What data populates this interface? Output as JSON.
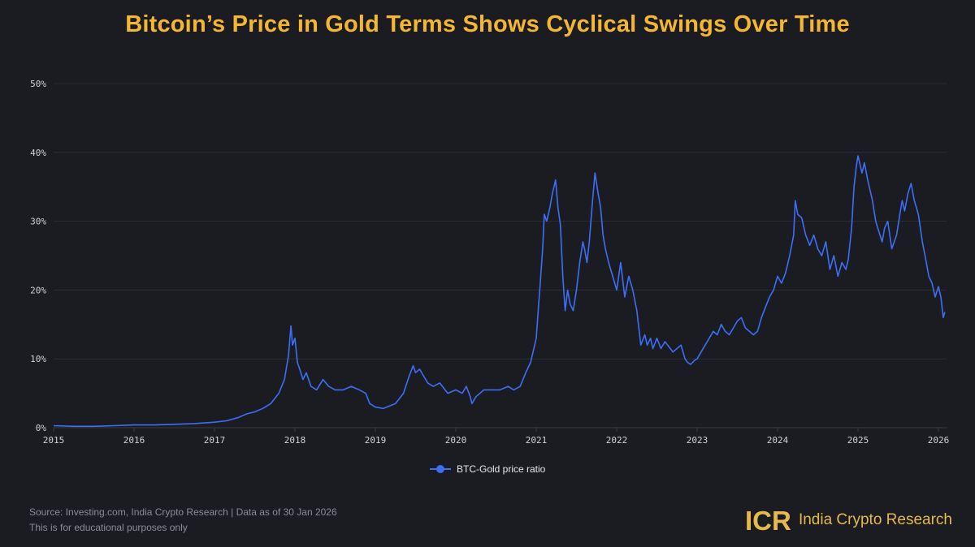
{
  "chart_data": {
    "type": "line",
    "title": "Bitcoin’s Price in Gold Terms Shows Cyclical Swings Over Time",
    "xlabel": "",
    "ylabel": "",
    "xlim": [
      2015,
      2026.1
    ],
    "ylim": [
      0,
      50
    ],
    "x_ticks": [
      2015,
      2016,
      2017,
      2018,
      2019,
      2020,
      2021,
      2022,
      2023,
      2024,
      2025,
      2026
    ],
    "x_tick_labels": [
      "2015",
      "2016",
      "2017",
      "2018",
      "2019",
      "2020",
      "2021",
      "2022",
      "2023",
      "2024",
      "2025",
      "2026"
    ],
    "y_ticks": [
      0,
      10,
      20,
      30,
      40,
      50
    ],
    "y_tick_labels": [
      "0%",
      "10%",
      "20%",
      "30%",
      "40%",
      "50%"
    ],
    "grid": true,
    "legend_position": "bottom-center",
    "series": [
      {
        "name": "BTC-Gold price ratio",
        "color": "#3d6ef7",
        "x": [
          2015.0,
          2015.25,
          2015.5,
          2015.75,
          2016.0,
          2016.25,
          2016.5,
          2016.75,
          2017.0,
          2017.15,
          2017.3,
          2017.4,
          2017.5,
          2017.6,
          2017.7,
          2017.8,
          2017.87,
          2017.92,
          2017.95,
          2017.97,
          2018.0,
          2018.03,
          2018.06,
          2018.1,
          2018.14,
          2018.2,
          2018.27,
          2018.35,
          2018.42,
          2018.5,
          2018.6,
          2018.7,
          2018.8,
          2018.88,
          2018.93,
          2019.0,
          2019.1,
          2019.25,
          2019.35,
          2019.42,
          2019.47,
          2019.5,
          2019.55,
          2019.6,
          2019.65,
          2019.72,
          2019.8,
          2019.9,
          2020.0,
          2020.08,
          2020.13,
          2020.18,
          2020.2,
          2020.25,
          2020.35,
          2020.45,
          2020.55,
          2020.65,
          2020.72,
          2020.8,
          2020.87,
          2020.93,
          2021.0,
          2021.03,
          2021.05,
          2021.08,
          2021.1,
          2021.13,
          2021.17,
          2021.2,
          2021.24,
          2021.27,
          2021.3,
          2021.33,
          2021.36,
          2021.39,
          2021.42,
          2021.46,
          2021.5,
          2021.54,
          2021.58,
          2021.6,
          2021.63,
          2021.66,
          2021.7,
          2021.73,
          2021.77,
          2021.8,
          2021.83,
          2021.86,
          2021.9,
          2021.95,
          2022.0,
          2022.05,
          2022.1,
          2022.15,
          2022.2,
          2022.25,
          2022.3,
          2022.35,
          2022.38,
          2022.42,
          2022.45,
          2022.5,
          2022.55,
          2022.6,
          2022.7,
          2022.8,
          2022.85,
          2022.88,
          2022.92,
          2022.97,
          2023.0,
          2023.05,
          2023.1,
          2023.15,
          2023.2,
          2023.25,
          2023.3,
          2023.35,
          2023.4,
          2023.45,
          2023.5,
          2023.55,
          2023.6,
          2023.7,
          2023.75,
          2023.8,
          2023.85,
          2023.9,
          2023.95,
          2024.0,
          2024.05,
          2024.1,
          2024.15,
          2024.2,
          2024.22,
          2024.25,
          2024.3,
          2024.35,
          2024.4,
          2024.45,
          2024.5,
          2024.55,
          2024.6,
          2024.65,
          2024.7,
          2024.75,
          2024.8,
          2024.85,
          2024.88,
          2024.92,
          2024.95,
          2024.98,
          2025.0,
          2025.05,
          2025.08,
          2025.12,
          2025.18,
          2025.22,
          2025.26,
          2025.3,
          2025.33,
          2025.37,
          2025.42,
          2025.48,
          2025.52,
          2025.55,
          2025.58,
          2025.62,
          2025.66,
          2025.7,
          2025.75,
          2025.8,
          2025.85,
          2025.88,
          2025.92,
          2025.96,
          2026.0,
          2026.03,
          2026.06,
          2026.08
        ],
        "values": [
          0.3,
          0.2,
          0.2,
          0.3,
          0.4,
          0.4,
          0.5,
          0.6,
          0.8,
          1.0,
          1.5,
          2.0,
          2.3,
          2.8,
          3.5,
          5.0,
          7.0,
          10.5,
          14.8,
          12.0,
          13.0,
          9.5,
          8.5,
          7.0,
          8.0,
          6.0,
          5.5,
          7.0,
          6.0,
          5.5,
          5.5,
          6.0,
          5.5,
          5.0,
          3.5,
          3.0,
          2.8,
          3.5,
          5.0,
          7.5,
          9.0,
          8.0,
          8.5,
          7.5,
          6.5,
          6.0,
          6.5,
          5.0,
          5.5,
          5.0,
          6.0,
          4.5,
          3.5,
          4.5,
          5.5,
          5.5,
          5.5,
          6.0,
          5.5,
          6.0,
          8.0,
          9.5,
          13.0,
          18.0,
          21.0,
          26.0,
          31.0,
          30.0,
          32.0,
          34.0,
          36.0,
          32.0,
          29.5,
          22.0,
          17.0,
          20.0,
          18.0,
          17.0,
          20.0,
          24.0,
          27.0,
          26.0,
          24.0,
          27.0,
          33.0,
          37.0,
          34.0,
          32.0,
          28.0,
          26.0,
          24.0,
          22.0,
          20.0,
          24.0,
          19.0,
          22.0,
          20.0,
          17.0,
          12.0,
          13.5,
          12.0,
          13.0,
          11.5,
          13.0,
          11.5,
          12.5,
          11.0,
          12.0,
          10.0,
          9.5,
          9.2,
          9.8,
          10.0,
          11.0,
          12.0,
          13.0,
          14.0,
          13.5,
          15.0,
          14.0,
          13.5,
          14.5,
          15.5,
          16.0,
          14.5,
          13.5,
          14.0,
          16.0,
          17.5,
          19.0,
          20.0,
          22.0,
          21.0,
          22.5,
          25.0,
          28.0,
          33.0,
          31.0,
          30.5,
          28.0,
          26.5,
          28.0,
          26.0,
          25.0,
          27.0,
          23.0,
          25.0,
          22.0,
          24.0,
          23.0,
          24.5,
          29.0,
          35.0,
          38.0,
          39.5,
          37.0,
          38.5,
          36.0,
          33.0,
          30.0,
          28.5,
          27.0,
          29.0,
          30.0,
          26.0,
          28.0,
          31.0,
          33.0,
          31.5,
          34.0,
          35.5,
          33.0,
          31.0,
          27.0,
          24.0,
          22.0,
          21.0,
          19.0,
          20.5,
          19.0,
          16.0,
          16.8
        ]
      }
    ]
  },
  "legend": {
    "label": "BTC-Gold price ratio"
  },
  "footer": {
    "source": "Source: Investing.com, India Crypto Research | Data as of 30 Jan 2026",
    "disclaimer": "This is for educational purposes only"
  },
  "brand": {
    "name": "India Crypto Research",
    "logo_text": "ICR",
    "logo_color": "#e6b94c"
  }
}
